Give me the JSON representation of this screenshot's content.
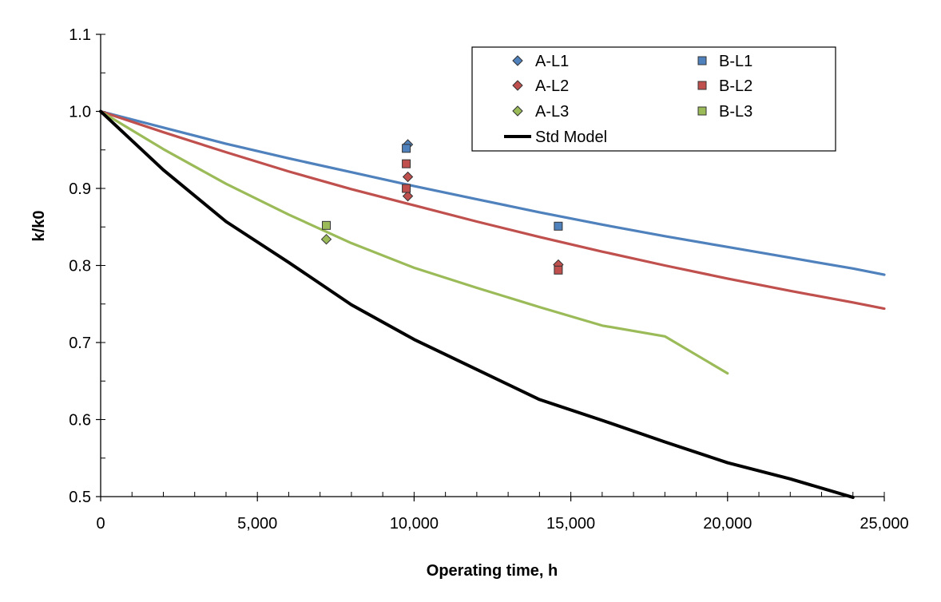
{
  "chart_data": {
    "type": "scatter",
    "xlabel": "Operating time, h",
    "ylabel": "k/k0",
    "xlim": [
      0,
      25000
    ],
    "ylim": [
      0.5,
      1.1
    ],
    "x_major_ticks": [
      0,
      5000,
      10000,
      15000,
      20000,
      25000
    ],
    "x_tick_labels": [
      "0",
      "5,000",
      "10,000",
      "15,000",
      "20,000",
      "25,000"
    ],
    "y_major_ticks": [
      0.5,
      0.6,
      0.7,
      0.8,
      0.9,
      1.0,
      1.1
    ],
    "y_tick_labels": [
      "0.5",
      "0.6",
      "0.7",
      "0.8",
      "0.9",
      "1.0",
      "1.1"
    ],
    "x_minor_step": 1000,
    "y_minor_step": 0.05,
    "grid": false,
    "legend_position": "top-right",
    "colors": {
      "blue": "#4f81bd",
      "red": "#c0504d",
      "green": "#9bbb59",
      "black": "#000000"
    },
    "lines": [
      {
        "key": "blue-curve",
        "color": "blue",
        "x": [
          0,
          2000,
          4000,
          6000,
          8000,
          10000,
          12000,
          14000,
          16000,
          18000,
          20000,
          22000,
          24000,
          25000
        ],
        "y": [
          1.0,
          0.979,
          0.958,
          0.939,
          0.921,
          0.903,
          0.886,
          0.869,
          0.853,
          0.838,
          0.824,
          0.81,
          0.796,
          0.788
        ]
      },
      {
        "key": "red-curve",
        "color": "red",
        "x": [
          0,
          2000,
          4000,
          6000,
          8000,
          10000,
          12000,
          14000,
          16000,
          18000,
          20000,
          22000,
          24000,
          25000
        ],
        "y": [
          1.0,
          0.973,
          0.947,
          0.922,
          0.899,
          0.878,
          0.857,
          0.837,
          0.818,
          0.8,
          0.783,
          0.767,
          0.752,
          0.744
        ]
      },
      {
        "key": "green-curve",
        "color": "green",
        "x": [
          0,
          2000,
          4000,
          6000,
          8000,
          10000,
          12000,
          14000,
          16000,
          18000,
          20000
        ],
        "y": [
          1.0,
          0.951,
          0.906,
          0.866,
          0.829,
          0.797,
          0.771,
          0.746,
          0.722,
          0.708,
          0.66
        ]
      },
      {
        "key": "std-model",
        "name": "Std Model",
        "color": "black",
        "x": [
          0,
          2000,
          4000,
          6000,
          8000,
          10000,
          12000,
          14000,
          16000,
          18000,
          20000,
          22000,
          24000
        ],
        "y": [
          1.0,
          0.924,
          0.857,
          0.804,
          0.749,
          0.704,
          0.665,
          0.626,
          0.599,
          0.571,
          0.544,
          0.523,
          0.499
        ]
      }
    ],
    "point_series": [
      {
        "key": "a-l1",
        "name": "A-L1",
        "marker": "diamond",
        "color": "blue",
        "x": [
          9800
        ],
        "y": [
          0.957
        ]
      },
      {
        "key": "a-l2",
        "name": "A-L2",
        "marker": "diamond",
        "color": "red",
        "x": [
          9800,
          9800,
          14600
        ],
        "y": [
          0.915,
          0.89,
          0.801
        ]
      },
      {
        "key": "a-l3",
        "name": "A-L3",
        "marker": "diamond",
        "color": "green",
        "x": [
          7200
        ],
        "y": [
          0.834
        ]
      },
      {
        "key": "b-l1",
        "name": "B-L1",
        "marker": "square",
        "color": "blue",
        "x": [
          9750,
          14600
        ],
        "y": [
          0.952,
          0.851
        ]
      },
      {
        "key": "b-l2",
        "name": "B-L2",
        "marker": "square",
        "color": "red",
        "x": [
          9750,
          9750,
          14600
        ],
        "y": [
          0.932,
          0.9,
          0.794
        ]
      },
      {
        "key": "b-l3",
        "name": "B-L3",
        "marker": "square",
        "color": "green",
        "x": [
          7200
        ],
        "y": [
          0.852
        ]
      }
    ],
    "legend_entries": [
      {
        "label": "A-L1",
        "marker": "diamond",
        "color": "blue"
      },
      {
        "label": "B-L1",
        "marker": "square",
        "color": "blue"
      },
      {
        "label": "A-L2",
        "marker": "diamond",
        "color": "red"
      },
      {
        "label": "B-L2",
        "marker": "square",
        "color": "red"
      },
      {
        "label": "A-L3",
        "marker": "diamond",
        "color": "green"
      },
      {
        "label": "B-L3",
        "marker": "square",
        "color": "green"
      },
      {
        "label": "Std Model",
        "marker": "line",
        "color": "black"
      }
    ]
  }
}
